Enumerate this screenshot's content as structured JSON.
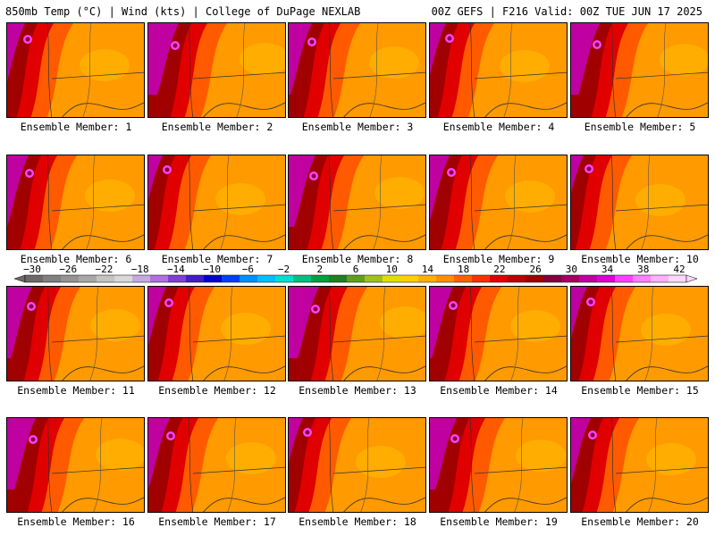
{
  "header": {
    "left": "850mb Temp (°C) | Wind (kts) | College of DuPage NEXLAB",
    "right": "00Z GEFS | F216 Valid: 00Z TUE JUN 17 2025"
  },
  "colorbar": {
    "labels": [
      "−30",
      "−26",
      "−22",
      "−18",
      "−14",
      "−10",
      "−6",
      "−2",
      "2",
      "6",
      "10",
      "14",
      "18",
      "22",
      "26",
      "30",
      "34",
      "38",
      "42"
    ],
    "colors": [
      "#6a6a6a",
      "#808080",
      "#949494",
      "#a8a8a8",
      "#c4c4c4",
      "#d8d8d8",
      "#c8a8e0",
      "#b070e0",
      "#8040d0",
      "#4020c0",
      "#0000d0",
      "#0040ff",
      "#0090ff",
      "#00c0ff",
      "#00e0d0",
      "#00c080",
      "#00a040",
      "#208020",
      "#60a020",
      "#a0c020",
      "#e0e000",
      "#ffd000",
      "#ffb000",
      "#ff9000",
      "#ff6000",
      "#ff3000",
      "#e00000",
      "#c00000",
      "#a00000",
      "#800040",
      "#a00060",
      "#c000a0",
      "#e000d0",
      "#ff40ff",
      "#ff80ff",
      "#ffb0ff",
      "#ffd8ff"
    ]
  },
  "members": [
    {
      "label": "Ensemble Member: 1"
    },
    {
      "label": "Ensemble Member: 2"
    },
    {
      "label": "Ensemble Member: 3"
    },
    {
      "label": "Ensemble Member: 4"
    },
    {
      "label": "Ensemble Member: 5"
    },
    {
      "label": "Ensemble Member: 6"
    },
    {
      "label": "Ensemble Member: 7"
    },
    {
      "label": "Ensemble Member: 8"
    },
    {
      "label": "Ensemble Member: 9"
    },
    {
      "label": "Ensemble Member: 10"
    },
    {
      "label": "Ensemble Member: 11"
    },
    {
      "label": "Ensemble Member: 12"
    },
    {
      "label": "Ensemble Member: 13"
    },
    {
      "label": "Ensemble Member: 14"
    },
    {
      "label": "Ensemble Member: 15"
    },
    {
      "label": "Ensemble Member: 16"
    },
    {
      "label": "Ensemble Member: 17"
    },
    {
      "label": "Ensemble Member: 18"
    },
    {
      "label": "Ensemble Member: 19"
    },
    {
      "label": "Ensemble Member: 20"
    }
  ]
}
